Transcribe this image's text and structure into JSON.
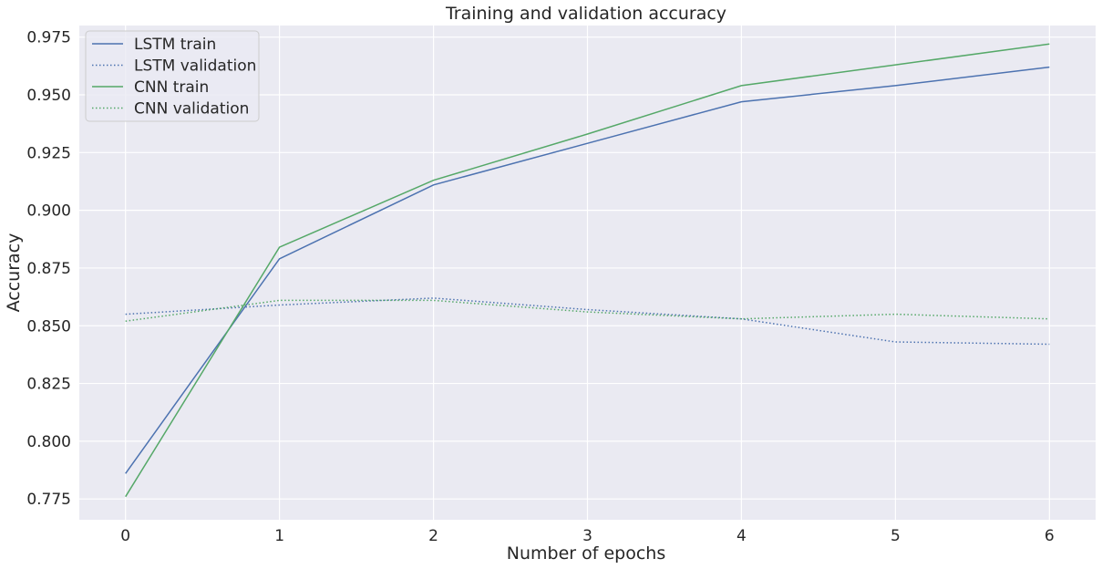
{
  "chart_data": {
    "type": "line",
    "title": "Training and validation accuracy",
    "xlabel": "Number of epochs",
    "ylabel": "Accuracy",
    "x": [
      0,
      1,
      2,
      3,
      4,
      5,
      6
    ],
    "xlim": [
      -0.3,
      6.3
    ],
    "ylim": [
      0.766,
      0.98
    ],
    "xticks": [
      0,
      1,
      2,
      3,
      4,
      5,
      6
    ],
    "yticks": [
      0.775,
      0.8,
      0.825,
      0.85,
      0.875,
      0.9,
      0.925,
      0.95,
      0.975
    ],
    "ytick_labels": [
      "0.775",
      "0.800",
      "0.825",
      "0.850",
      "0.875",
      "0.900",
      "0.925",
      "0.950",
      "0.975"
    ],
    "grid": true,
    "legend_position": "top-left",
    "series": [
      {
        "name": "LSTM train",
        "values": [
          0.786,
          0.879,
          0.911,
          0.929,
          0.947,
          0.954,
          0.962
        ],
        "color": "#4c72b0",
        "style": "solid"
      },
      {
        "name": "LSTM validation",
        "values": [
          0.855,
          0.859,
          0.862,
          0.857,
          0.853,
          0.843,
          0.842
        ],
        "color": "#4c72b0",
        "style": "dotted"
      },
      {
        "name": "CNN train",
        "values": [
          0.776,
          0.884,
          0.913,
          0.933,
          0.954,
          0.963,
          0.972
        ],
        "color": "#55a868",
        "style": "solid"
      },
      {
        "name": "CNN validation",
        "values": [
          0.852,
          0.861,
          0.861,
          0.856,
          0.853,
          0.855,
          0.853
        ],
        "color": "#55a868",
        "style": "dotted"
      }
    ]
  }
}
